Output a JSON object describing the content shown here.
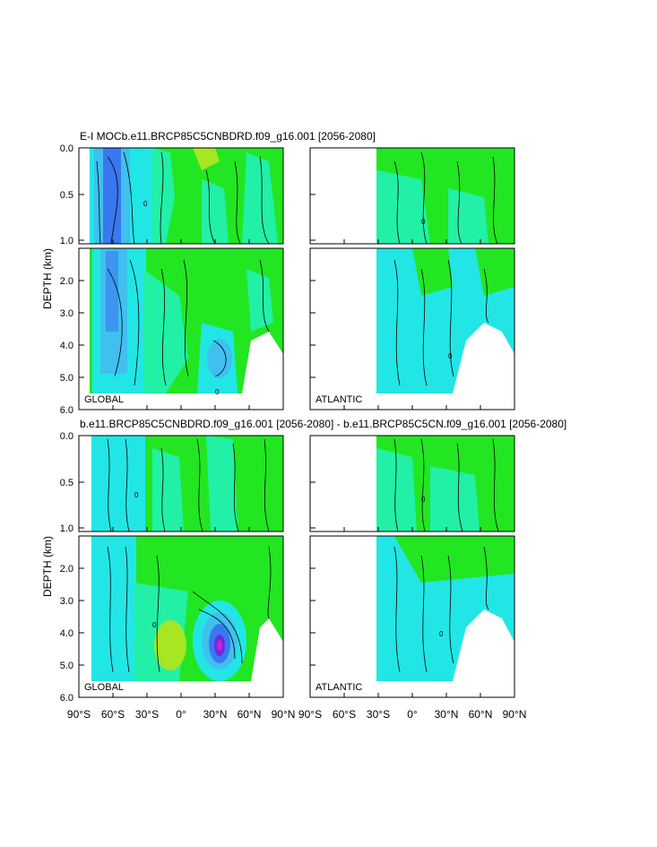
{
  "chart_data": [
    {
      "type": "heatmap",
      "title": "E-I MOCb.e11.BRCP85C5CNBDRD.f09_g16.001 [2056-2080]",
      "ylabel": "DEPTH (km)",
      "panels": [
        {
          "region": "GLOBAL",
          "xlim": [
            -90,
            90
          ]
        },
        {
          "region": "ATLANTIC",
          "xlim": [
            -30,
            90
          ]
        }
      ],
      "upper_yticks": [
        "0.0",
        "0.5",
        "1.0"
      ],
      "lower_yticks": [
        "2.0",
        "3.0",
        "4.0",
        "5.0",
        "6.0"
      ],
      "upper_ylim": [
        0,
        1
      ],
      "lower_ylim": [
        1,
        6
      ],
      "contour_label": "0"
    },
    {
      "type": "heatmap",
      "title": "b.e11.BRCP85C5CNBDRD.f09_g16.001 [2056-2080] - b.e11.BRCP85C5CN.f09_g16.001 [2056-2080]",
      "ylabel": "DEPTH (km)",
      "panels": [
        {
          "region": "GLOBAL",
          "xlim": [
            -90,
            90
          ]
        },
        {
          "region": "ATLANTIC",
          "xlim": [
            -30,
            90
          ]
        }
      ],
      "upper_yticks": [
        "0.0",
        "0.5",
        "1.0"
      ],
      "lower_yticks": [
        "2.0",
        "3.0",
        "4.0",
        "5.0",
        "6.0"
      ],
      "upper_ylim": [
        0,
        1
      ],
      "lower_ylim": [
        1,
        6
      ],
      "contour_label": "0"
    }
  ],
  "xticks": [
    "90°S",
    "60°S",
    "30°S",
    "0°",
    "30°N",
    "60°N",
    "90°N"
  ],
  "xtick_values": [
    -90,
    -60,
    -30,
    0,
    30,
    60,
    90
  ],
  "colors": {
    "green": "#22e622",
    "cyan_green": "#22f0a6",
    "cyan": "#22e6e6",
    "light_blue": "#3fc0ee",
    "blue": "#3a78f0",
    "yellow_green": "#a6e622",
    "magenta": "#d020d0",
    "purple": "#6a2ce0"
  }
}
